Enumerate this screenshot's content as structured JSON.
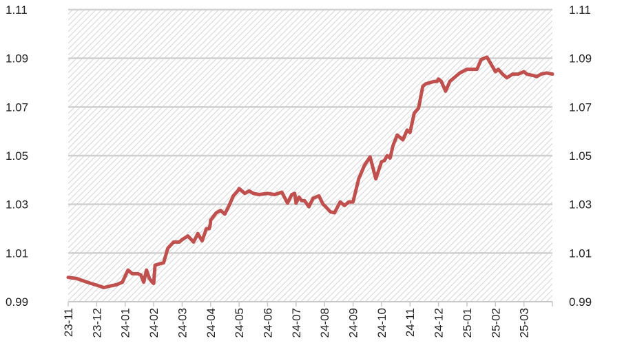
{
  "chart_data": {
    "type": "line",
    "title": "",
    "xlabel": "",
    "ylabel": "",
    "ylim": [
      0.99,
      1.11
    ],
    "y_ticks": [
      "1.11",
      "1.09",
      "1.07",
      "1.05",
      "1.03",
      "1.01",
      "0.99"
    ],
    "y_tick_values": [
      1.11,
      1.09,
      1.07,
      1.05,
      1.03,
      1.01,
      0.99
    ],
    "x_ticks": [
      "23-11",
      "23-12",
      "24-01",
      "24-02",
      "24-03",
      "24-04",
      "24-05",
      "24-06",
      "24-07",
      "24-08",
      "24-09",
      "24-10",
      "24-11",
      "24-12",
      "25-01",
      "25-02",
      "25-03"
    ],
    "x_axis_end": "25-04",
    "grid": true,
    "hatched_background": true,
    "secondary_y_axis": true,
    "line_color": "#c0504d",
    "series": [
      {
        "name": "",
        "x": [
          "23-11",
          "23-11",
          "23-11",
          "23-11",
          "23-12",
          "23-12",
          "23-12",
          "23-12",
          "23-12",
          "24-01",
          "24-01",
          "24-01",
          "24-01",
          "24-01",
          "24-01",
          "24-01",
          "24-01",
          "24-01",
          "24-02",
          "24-02",
          "24-02",
          "24-02",
          "24-02",
          "24-02",
          "24-02",
          "24-03",
          "24-03",
          "24-03",
          "24-03",
          "24-03",
          "24-03",
          "24-03",
          "24-03",
          "24-04",
          "24-04",
          "24-04",
          "24-04",
          "24-04",
          "24-04",
          "24-04",
          "24-05",
          "24-05",
          "24-05",
          "24-05",
          "24-05",
          "24-06",
          "24-06",
          "24-06",
          "24-06",
          "24-06",
          "24-06",
          "24-07",
          "24-07",
          "24-07",
          "24-07",
          "24-07",
          "24-07",
          "24-07",
          "24-07",
          "24-08",
          "24-08",
          "24-08",
          "24-08",
          "24-08",
          "24-08",
          "24-09",
          "24-09",
          "24-09",
          "24-09",
          "24-09",
          "24-10",
          "24-10",
          "24-10",
          "24-10",
          "24-10",
          "24-10",
          "24-10",
          "24-10",
          "24-11",
          "24-11",
          "24-11",
          "24-11",
          "24-11",
          "24-11",
          "24-11",
          "24-11",
          "24-12",
          "24-12",
          "24-12",
          "24-12",
          "24-12",
          "24-12",
          "25-01",
          "25-01",
          "25-01",
          "25-01",
          "25-01",
          "25-01",
          "25-02",
          "25-02",
          "25-02",
          "25-02",
          "25-02",
          "25-02",
          "25-03",
          "25-03",
          "25-03",
          "25-03",
          "25-03",
          "25-03",
          "25-03"
        ],
        "x_pos": [
          0.0,
          0.3,
          0.55,
          0.8,
          0.0,
          0.25,
          0.5,
          0.7,
          0.9,
          0.0,
          0.1,
          0.25,
          0.45,
          0.55,
          0.65,
          0.75,
          0.85,
          0.95,
          0.0,
          0.05,
          0.2,
          0.35,
          0.5,
          0.7,
          0.9,
          0.0,
          0.2,
          0.4,
          0.55,
          0.7,
          0.85,
          0.95,
          0.99,
          0.0,
          0.2,
          0.35,
          0.5,
          0.65,
          0.8,
          0.95,
          0.0,
          0.2,
          0.35,
          0.5,
          0.7,
          0.0,
          0.25,
          0.5,
          0.7,
          0.85,
          0.95,
          0.0,
          0.1,
          0.2,
          0.3,
          0.45,
          0.6,
          0.8,
          0.95,
          0.0,
          0.2,
          0.35,
          0.55,
          0.7,
          0.85,
          0.0,
          0.2,
          0.4,
          0.6,
          0.8,
          0.0,
          0.1,
          0.2,
          0.3,
          0.4,
          0.55,
          0.75,
          0.9,
          0.0,
          0.15,
          0.3,
          0.45,
          0.55,
          0.7,
          0.85,
          0.95,
          0.0,
          0.1,
          0.25,
          0.4,
          0.55,
          0.75,
          0.0,
          0.2,
          0.35,
          0.5,
          0.7,
          0.9,
          0.0,
          0.1,
          0.25,
          0.4,
          0.6,
          0.8,
          0.0,
          0.1,
          0.3,
          0.45,
          0.6,
          0.8,
          1.0
        ],
        "y": [
          1.0,
          0.9995,
          0.9985,
          0.9975,
          0.9968,
          0.9958,
          0.9965,
          0.997,
          0.998,
          1.0005,
          1.003,
          1.0015,
          1.0015,
          1.001,
          0.998,
          1.003,
          0.9995,
          0.998,
          0.9975,
          1.005,
          1.0055,
          1.006,
          1.012,
          1.0145,
          1.0145,
          1.0155,
          1.017,
          1.0145,
          1.018,
          1.015,
          1.02,
          1.02,
          1.022,
          1.0235,
          1.0265,
          1.0275,
          1.026,
          1.0295,
          1.0335,
          1.0355,
          1.0365,
          1.0345,
          1.0355,
          1.0345,
          1.034,
          1.0345,
          1.034,
          1.035,
          1.0305,
          1.034,
          1.0345,
          1.0305,
          1.033,
          1.0315,
          1.0315,
          1.029,
          1.0325,
          1.0335,
          1.03,
          1.0295,
          1.027,
          1.0265,
          1.031,
          1.0295,
          1.031,
          1.031,
          1.0405,
          1.046,
          1.0495,
          1.0405,
          1.0475,
          1.048,
          1.05,
          1.049,
          1.054,
          1.0585,
          1.0565,
          1.0605,
          1.0595,
          1.0675,
          1.0695,
          1.0785,
          1.0795,
          1.08,
          1.0805,
          1.0805,
          1.0815,
          1.0805,
          1.0765,
          1.0805,
          1.082,
          1.084,
          1.0855,
          1.0855,
          1.0855,
          1.0895,
          1.0905,
          1.0865,
          1.0845,
          1.0855,
          1.0835,
          1.082,
          1.0835,
          1.0835,
          1.0845,
          1.0835,
          1.083,
          1.0825,
          1.0835,
          1.084,
          1.0835
        ]
      }
    ]
  }
}
